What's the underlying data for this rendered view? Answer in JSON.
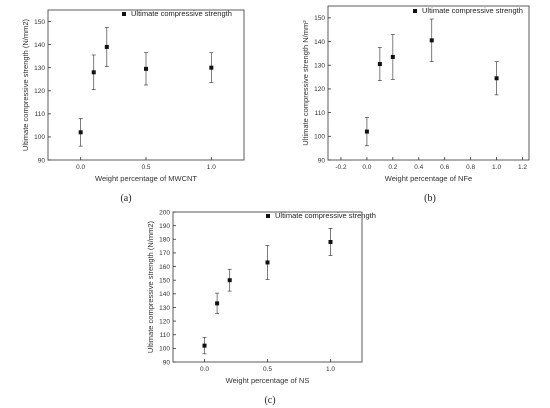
{
  "chart_data": [
    {
      "type": "scatter",
      "panel_label": "(a)",
      "xlabel": "Weight  percentage of MWCNT",
      "ylabel": "Ultimate compressive strength (N/mm2)",
      "legend": "Ultimate compressive strength",
      "legend_position": "top-right",
      "grid": false,
      "xlim": [
        -0.25,
        1.25
      ],
      "ylim": [
        90,
        155
      ],
      "x_ticks": [
        0.0,
        0.5,
        1.0
      ],
      "y_ticks": [
        90,
        100,
        110,
        120,
        130,
        140,
        150
      ],
      "x": [
        0.0,
        0.1,
        0.2,
        0.5,
        1.0
      ],
      "y": [
        102,
        128,
        139,
        129.5,
        130
      ],
      "err": [
        6,
        7.5,
        8.5,
        7,
        6.5
      ]
    },
    {
      "type": "scatter",
      "panel_label": "(b)",
      "xlabel": "Weight percentage of NFe",
      "ylabel": "Ultimate compressive strength N/mm²",
      "legend": "Ultimate compressive strength",
      "legend_position": "top-right",
      "grid": false,
      "xlim": [
        -0.3,
        1.25
      ],
      "ylim": [
        90,
        155
      ],
      "x_ticks": [
        -0.2,
        0.0,
        0.2,
        0.4,
        0.6,
        0.8,
        1.0,
        1.2
      ],
      "y_ticks": [
        90,
        100,
        110,
        120,
        130,
        140,
        150
      ],
      "x": [
        0.0,
        0.1,
        0.2,
        0.5,
        1.0
      ],
      "y": [
        102,
        130.5,
        133.5,
        140.5,
        124.5
      ],
      "err": [
        6,
        7,
        9.5,
        9,
        7
      ]
    },
    {
      "type": "scatter",
      "panel_label": "(c)",
      "xlabel": "Weight  percentage of NS",
      "ylabel": "Ultimate compressive strength (N/mm2)",
      "legend": "Ultimate compressive strength",
      "legend_position": "top-right",
      "grid": false,
      "xlim": [
        -0.25,
        1.25
      ],
      "ylim": [
        90,
        200
      ],
      "x_ticks": [
        0.0,
        0.5,
        1.0
      ],
      "y_ticks": [
        90,
        100,
        110,
        120,
        130,
        140,
        150,
        160,
        170,
        180,
        190,
        200
      ],
      "x": [
        0.0,
        0.1,
        0.2,
        0.5,
        1.0
      ],
      "y": [
        102,
        133,
        150,
        163,
        178
      ],
      "err": [
        6,
        7.5,
        8,
        12.5,
        10
      ]
    }
  ]
}
